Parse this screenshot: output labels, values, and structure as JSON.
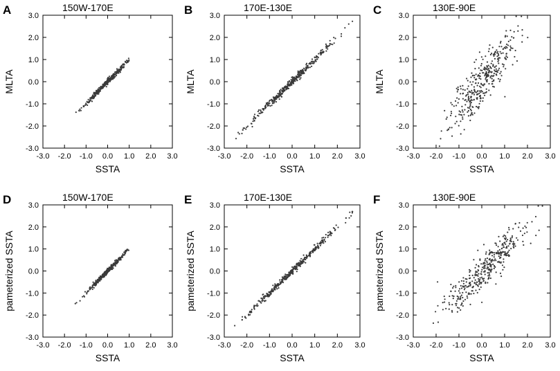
{
  "chart_data": [
    {
      "letter": "A",
      "type": "scatter",
      "title": "150W-170E",
      "xlabel": "SSTA",
      "ylabel": "MLTA",
      "xlim": [
        -3,
        3
      ],
      "ylim": [
        -3,
        3
      ],
      "spread": 0.06,
      "slope": 1.0,
      "xmin": -1.5,
      "xmax": 1.0
    },
    {
      "letter": "B",
      "type": "scatter",
      "title": "170E-130E",
      "xlabel": "SSTA",
      "ylabel": "MLTA",
      "xlim": [
        -3,
        3
      ],
      "ylim": [
        -3,
        3
      ],
      "spread": 0.09,
      "slope": 1.0,
      "xmin": -2.7,
      "xmax": 2.7
    },
    {
      "letter": "C",
      "type": "scatter",
      "title": "130E-90E",
      "xlabel": "SSTA",
      "ylabel": "MLTA",
      "xlim": [
        -3,
        3
      ],
      "ylim": [
        -3,
        3
      ],
      "spread": 0.55,
      "slope": 1.25,
      "xmin": -2.0,
      "xmax": 2.3
    },
    {
      "letter": "D",
      "type": "scatter",
      "title": "150W-170E",
      "xlabel": "SSTA",
      "ylabel": "pameterized SSTA",
      "xlim": [
        -3,
        3
      ],
      "ylim": [
        -3,
        3
      ],
      "spread": 0.05,
      "slope": 1.0,
      "xmin": -1.5,
      "xmax": 1.0
    },
    {
      "letter": "E",
      "type": "scatter",
      "title": "170E-130E",
      "xlabel": "SSTA",
      "ylabel": "pameterized SSTA",
      "xlim": [
        -3,
        3
      ],
      "ylim": [
        -3,
        3
      ],
      "spread": 0.08,
      "slope": 1.0,
      "xmin": -2.7,
      "xmax": 2.7
    },
    {
      "letter": "F",
      "type": "scatter",
      "title": "130E-90E",
      "xlabel": "SSTA",
      "ylabel": "pameterized SSTA",
      "xlim": [
        -3,
        3
      ],
      "ylim": [
        -3,
        3
      ],
      "spread": 0.4,
      "slope": 1.0,
      "xmin": -2.2,
      "xmax": 2.8
    }
  ],
  "ticks": [
    "-3.0",
    "-2.0",
    "-1.0",
    "0.0",
    "1.0",
    "2.0",
    "3.0"
  ],
  "colors": {
    "point": "#3a3a3a",
    "axis": "#000000"
  }
}
